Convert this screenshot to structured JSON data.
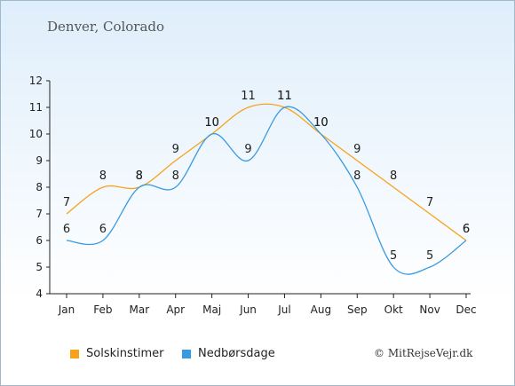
{
  "location": "Denver, Colorado",
  "copyright": "© MitRejseVejr.dk",
  "chart_data": {
    "type": "line",
    "categories": [
      "Jan",
      "Feb",
      "Mar",
      "Apr",
      "Maj",
      "Jun",
      "Jul",
      "Aug",
      "Sep",
      "Okt",
      "Nov",
      "Dec"
    ],
    "ylim": [
      4,
      12
    ],
    "yticks": [
      4,
      5,
      6,
      7,
      8,
      9,
      10,
      11,
      12
    ],
    "grid": false,
    "legend_position": "bottom-left",
    "series": [
      {
        "name": "Solskinstimer",
        "color": "#f7a21b",
        "values": [
          7,
          8,
          8,
          9,
          10,
          11,
          11,
          10,
          9,
          8,
          7,
          6
        ]
      },
      {
        "name": "Nedbørsdage",
        "color": "#3a9ae0",
        "values": [
          6,
          6,
          8,
          8,
          10,
          9,
          11,
          10,
          8,
          5,
          5,
          6
        ]
      }
    ]
  }
}
